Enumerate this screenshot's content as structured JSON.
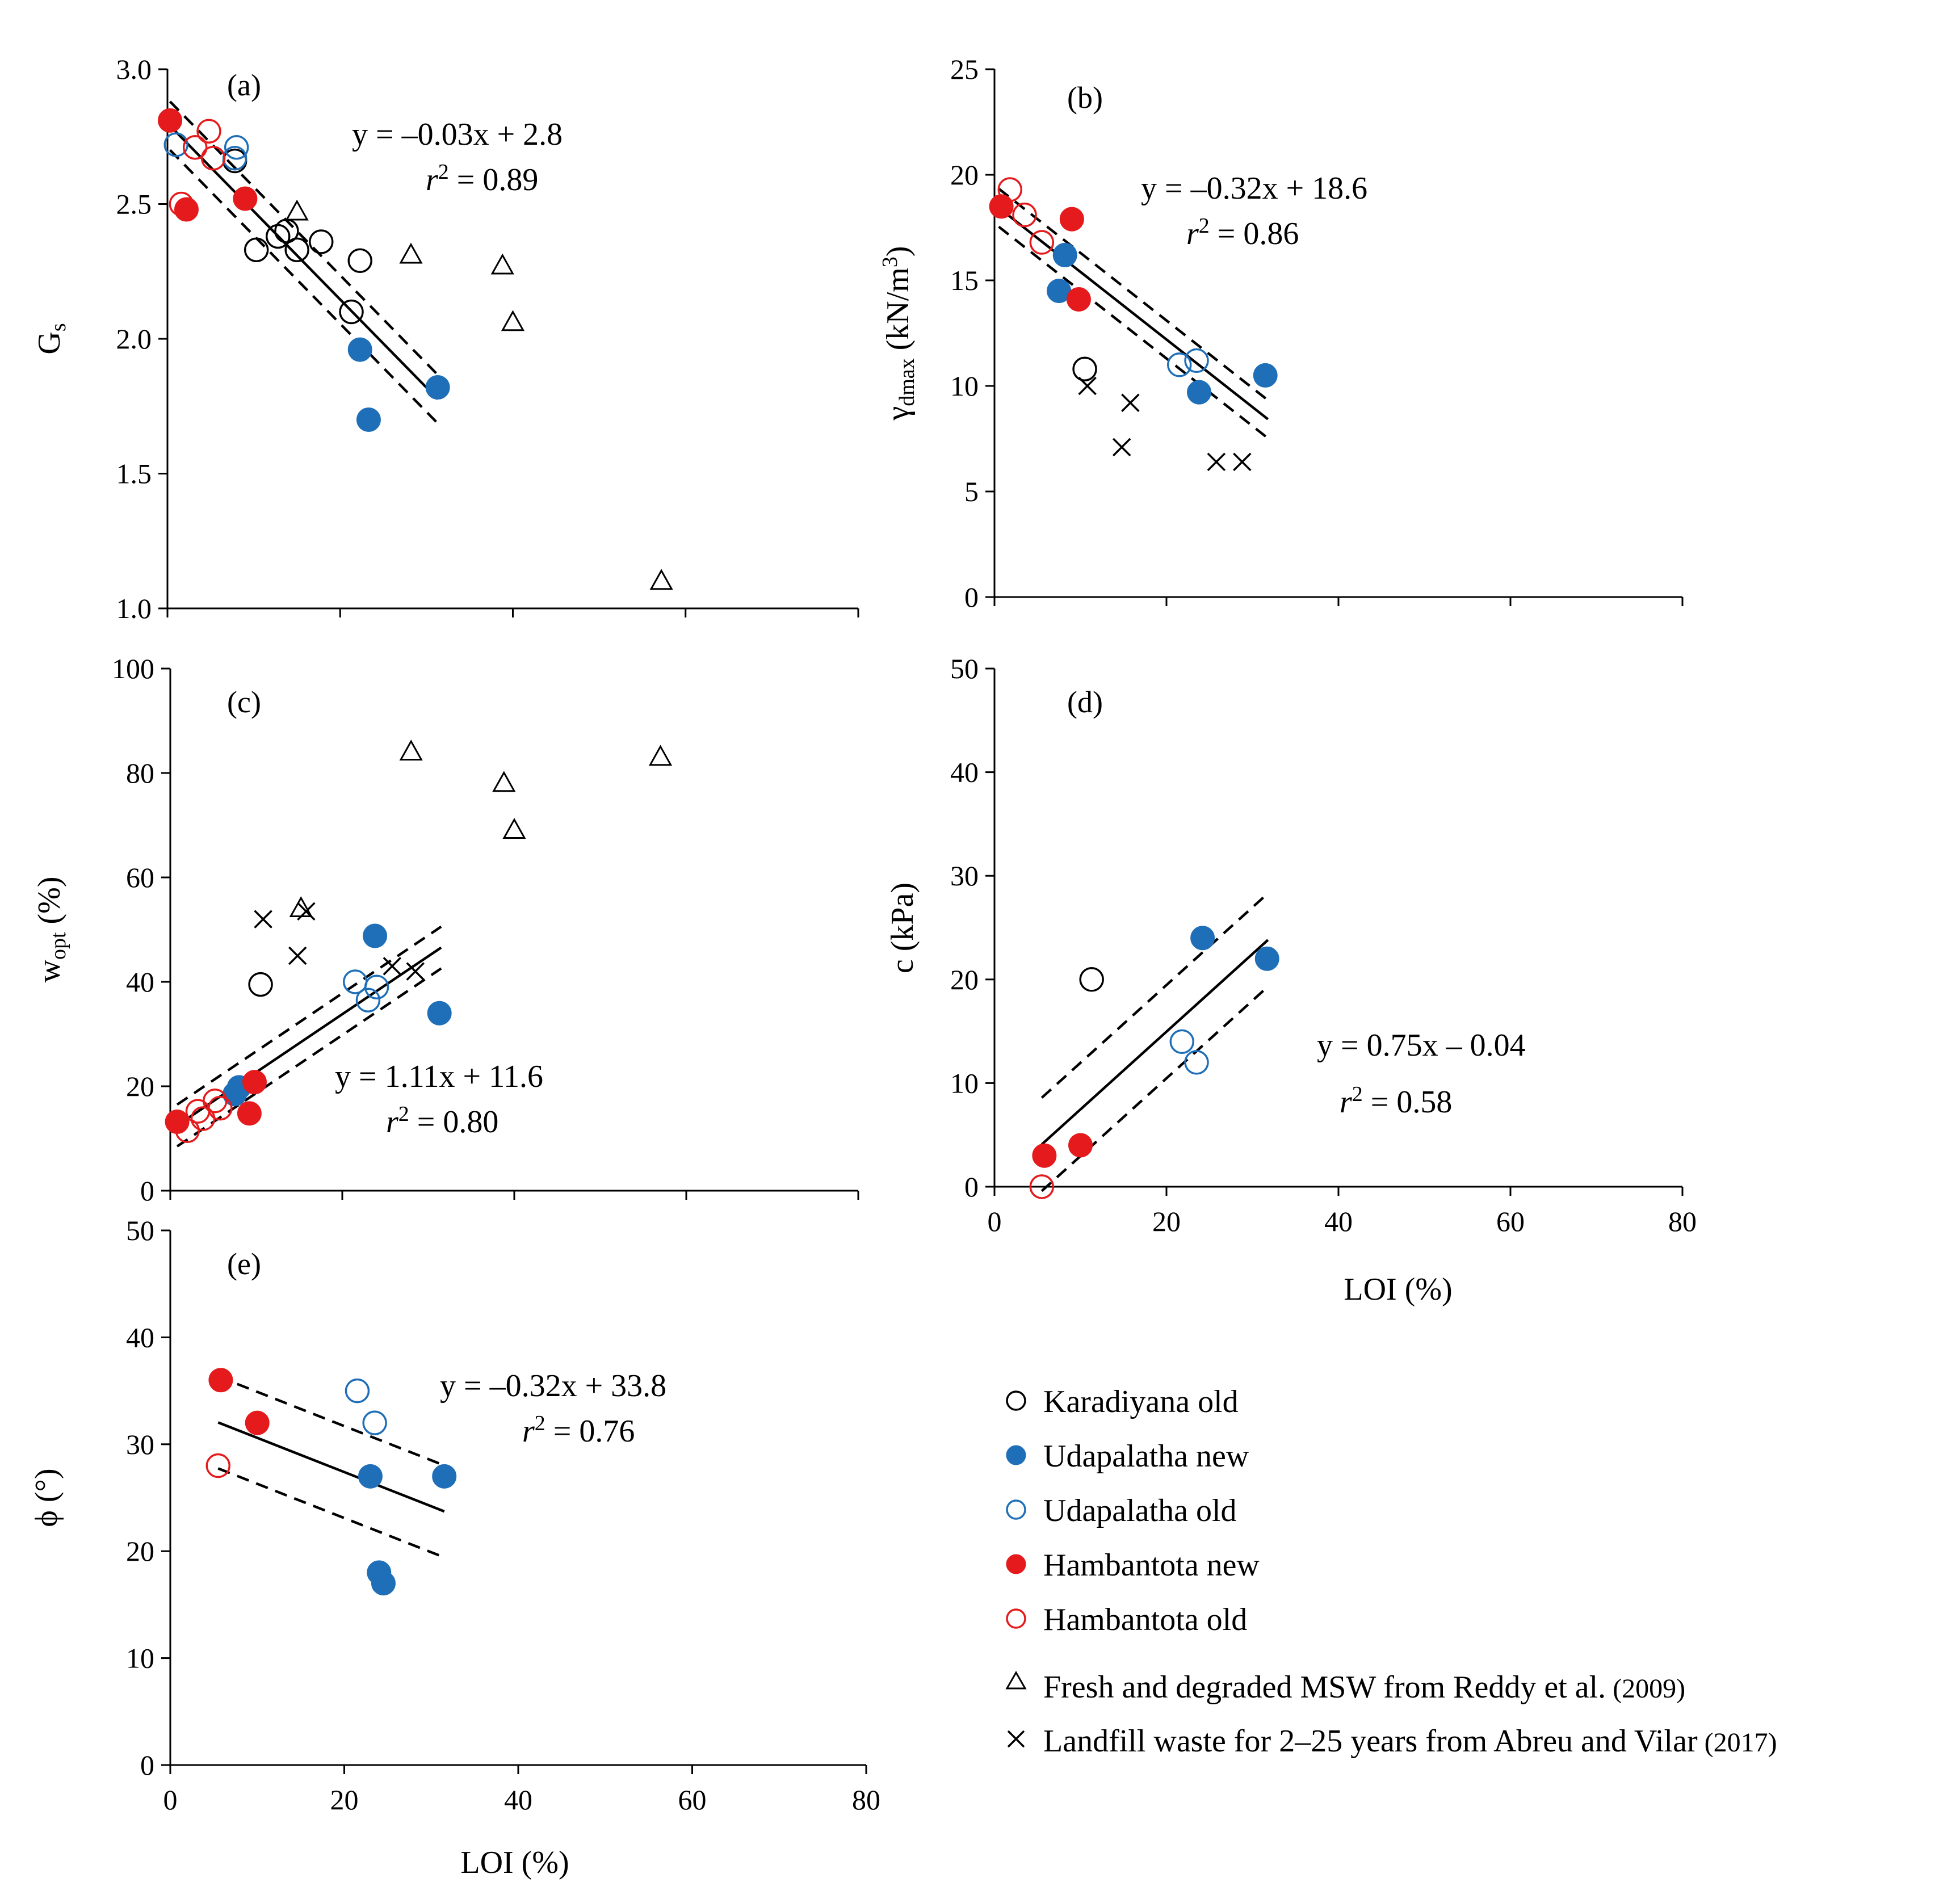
{
  "colors": {
    "karadiyana_old": "#000000",
    "udapalatha_new": "#1f6fb8",
    "udapalatha_old": "#1f6fb8",
    "hambantota_new": "#e41a1c",
    "hambantota_old": "#e41a1c",
    "reddy": "#000000",
    "abreu": "#000000"
  },
  "legend": [
    {
      "key": "karadiyana_old",
      "label": "Karadiyana old",
      "marker": "circle-open"
    },
    {
      "key": "udapalatha_new",
      "label": "Udapalatha new",
      "marker": "circle-filled"
    },
    {
      "key": "udapalatha_old",
      "label": "Udapalatha old",
      "marker": "circle-open"
    },
    {
      "key": "hambantota_new",
      "label": "Hambantota new",
      "marker": "circle-filled"
    },
    {
      "key": "hambantota_old",
      "label": "Hambantota old",
      "marker": "circle-open"
    },
    {
      "key": "reddy",
      "label": "Fresh and degraded MSW from Reddy et al.",
      "year": "(2009)",
      "marker": "triangle"
    },
    {
      "key": "abreu",
      "label": "Landfill waste for 2–25 years from Abreu and Vilar",
      "year": "(2017)",
      "marker": "cross"
    }
  ],
  "chart_data": [
    {
      "id": "a",
      "type": "scatter",
      "panel_label": "(a)",
      "xlabel": "",
      "ylabel": "G",
      "ylabel_sub": "s",
      "xlim": [
        0,
        80
      ],
      "ylim": [
        1.0,
        3.0
      ],
      "xticks": [
        0,
        20,
        40,
        60,
        80
      ],
      "show_xtick_labels": false,
      "yticks": [
        1.0,
        1.5,
        2.0,
        2.5,
        3.0
      ],
      "ytick_labels": [
        "1.0",
        "1.5",
        "2.0",
        "2.5",
        "3.0"
      ],
      "equation": "y = –0.03x + 2.8",
      "r2_label": "r",
      "r2_value": " = 0.89",
      "fit": {
        "slope": -0.0327,
        "intercept": 2.8,
        "x_range": [
          0.3,
          31.3
        ],
        "ci_offset": 0.09
      },
      "series": [
        {
          "key": "karadiyana_old",
          "points": [
            [
              7.8,
              2.66
            ],
            [
              10.3,
              2.33
            ],
            [
              12.8,
              2.38
            ],
            [
              13.8,
              2.4
            ],
            [
              15.0,
              2.33
            ],
            [
              17.8,
              2.36
            ],
            [
              21.3,
              2.1
            ],
            [
              22.3,
              2.29
            ]
          ]
        },
        {
          "key": "udapalatha_new",
          "points": [
            [
              22.3,
              1.96
            ],
            [
              23.3,
              1.7
            ],
            [
              31.3,
              1.82
            ]
          ]
        },
        {
          "key": "udapalatha_old",
          "points": [
            [
              1.0,
              2.72
            ],
            [
              7.8,
              2.67
            ],
            [
              8.0,
              2.71
            ]
          ]
        },
        {
          "key": "hambantota_new",
          "points": [
            [
              0.3,
              2.81
            ],
            [
              2.2,
              2.48
            ],
            [
              9.0,
              2.52
            ]
          ]
        },
        {
          "key": "hambantota_old",
          "points": [
            [
              1.6,
              2.5
            ],
            [
              3.2,
              2.71
            ],
            [
              4.8,
              2.77
            ],
            [
              5.3,
              2.67
            ]
          ]
        },
        {
          "key": "reddy",
          "points": [
            [
              15.0,
              2.47
            ],
            [
              28.2,
              2.31
            ],
            [
              38.8,
              2.27
            ],
            [
              40.0,
              2.06
            ],
            [
              57.2,
              1.1
            ]
          ]
        },
        {
          "key": "abreu",
          "points": []
        }
      ]
    },
    {
      "id": "b",
      "type": "scatter",
      "panel_label": "(b)",
      "xlabel": "",
      "ylabel": "γ",
      "ylabel_sub": "dmax",
      "ylabel_rest": " (kN/m",
      "ylabel_sup": "3",
      "ylabel_end": ")",
      "xlim": [
        0,
        80
      ],
      "ylim": [
        0,
        25
      ],
      "xticks": [
        0,
        20,
        40,
        60,
        80
      ],
      "show_xtick_labels": false,
      "yticks": [
        0,
        5,
        10,
        15,
        20,
        25
      ],
      "ytick_labels": [
        "0",
        "5",
        "10",
        "15",
        "20",
        "25"
      ],
      "equation": "y = –0.32x + 18.6",
      "r2_label": "r",
      "r2_value": " = 0.86",
      "fit": {
        "slope": -0.32,
        "intercept": 18.6,
        "x_range": [
          0.5,
          31.8
        ],
        "ci_offset": 0.9
      },
      "series": [
        {
          "key": "karadiyana_old",
          "points": [
            [
              10.5,
              10.8
            ]
          ]
        },
        {
          "key": "udapalatha_new",
          "points": [
            [
              7.5,
              14.5
            ],
            [
              8.2,
              16.2
            ],
            [
              23.8,
              9.7
            ],
            [
              31.5,
              10.5
            ]
          ]
        },
        {
          "key": "udapalatha_old",
          "points": [
            [
              21.5,
              11.0
            ],
            [
              23.5,
              11.2
            ]
          ]
        },
        {
          "key": "hambantota_new",
          "points": [
            [
              0.8,
              18.5
            ],
            [
              9.0,
              17.9
            ],
            [
              9.8,
              14.1
            ]
          ]
        },
        {
          "key": "hambantota_old",
          "points": [
            [
              1.8,
              19.3
            ],
            [
              3.5,
              18.1
            ],
            [
              5.5,
              16.8
            ]
          ]
        },
        {
          "key": "reddy",
          "points": []
        },
        {
          "key": "abreu",
          "points": [
            [
              10.8,
              10.0
            ],
            [
              14.8,
              7.1
            ],
            [
              15.8,
              9.2
            ],
            [
              25.8,
              6.4
            ],
            [
              28.8,
              6.4
            ]
          ]
        }
      ]
    },
    {
      "id": "c",
      "type": "scatter",
      "panel_label": "(c)",
      "xlabel": "",
      "ylabel": "w",
      "ylabel_sub": "opt",
      "ylabel_rest": " (%)",
      "xlim": [
        0,
        80
      ],
      "ylim": [
        0,
        100
      ],
      "xticks": [
        0,
        20,
        40,
        60,
        80
      ],
      "show_xtick_labels": false,
      "yticks": [
        0,
        20,
        40,
        60,
        80,
        100
      ],
      "ytick_labels": [
        "0",
        "20",
        "40",
        "60",
        "80",
        "100"
      ],
      "equation": "y = 1.11x + 11.6",
      "r2_label": "r",
      "r2_value": " = 0.80",
      "fit": {
        "slope": 1.11,
        "intercept": 11.6,
        "x_range": [
          0.8,
          31.5
        ],
        "ci_offset": 4.0
      },
      "series": [
        {
          "key": "karadiyana_old",
          "points": [
            [
              10.5,
              39.5
            ]
          ]
        },
        {
          "key": "udapalatha_new",
          "points": [
            [
              7.5,
              18.5
            ],
            [
              8.0,
              19.8
            ],
            [
              23.8,
              48.8
            ],
            [
              31.3,
              34.0
            ]
          ]
        },
        {
          "key": "udapalatha_old",
          "points": [
            [
              21.5,
              40.0
            ],
            [
              23.0,
              36.5
            ],
            [
              24.0,
              39.0
            ]
          ]
        },
        {
          "key": "hambantota_new",
          "points": [
            [
              0.8,
              13.2
            ],
            [
              9.2,
              14.8
            ],
            [
              9.8,
              20.8
            ]
          ]
        },
        {
          "key": "hambantota_old",
          "points": [
            [
              2.0,
              11.5
            ],
            [
              3.2,
              15.2
            ],
            [
              3.8,
              13.8
            ],
            [
              5.2,
              17.2
            ],
            [
              5.8,
              15.8
            ]
          ]
        },
        {
          "key": "reddy",
          "points": [
            [
              15.2,
              54.0
            ],
            [
              28.0,
              84.0
            ],
            [
              38.8,
              78.0
            ],
            [
              40.0,
              69.0
            ],
            [
              57.0,
              83.0
            ]
          ]
        },
        {
          "key": "abreu",
          "points": [
            [
              10.8,
              52.0
            ],
            [
              14.8,
              45.0
            ],
            [
              15.8,
              53.5
            ],
            [
              25.8,
              43.0
            ],
            [
              28.5,
              42.0
            ]
          ]
        }
      ]
    },
    {
      "id": "d",
      "type": "scatter",
      "panel_label": "(d)",
      "xlabel": "LOI (%)",
      "ylabel": "c (kPa)",
      "xlim": [
        0,
        80
      ],
      "ylim": [
        0,
        50
      ],
      "xticks": [
        0,
        20,
        40,
        60,
        80
      ],
      "show_xtick_labels": true,
      "xtick_labels": [
        "0",
        "20",
        "40",
        "60",
        "80"
      ],
      "yticks": [
        0,
        10,
        20,
        30,
        40,
        50
      ],
      "ytick_labels": [
        "0",
        "10",
        "20",
        "30",
        "40",
        "50"
      ],
      "equation": "y = 0.75x – 0.04",
      "r2_label": "r",
      "r2_value": " = 0.58",
      "fit": {
        "slope": 0.75,
        "intercept": -0.04,
        "x_range": [
          5.5,
          31.8
        ],
        "ci_offset": 4.5
      },
      "series": [
        {
          "key": "karadiyana_old",
          "points": [
            [
              11.3,
              20.0
            ]
          ]
        },
        {
          "key": "udapalatha_new",
          "points": [
            [
              24.2,
              24.0
            ],
            [
              31.7,
              22.0
            ]
          ]
        },
        {
          "key": "udapalatha_old",
          "points": [
            [
              21.8,
              14.0
            ],
            [
              23.5,
              12.0
            ]
          ]
        },
        {
          "key": "hambantota_new",
          "points": [
            [
              5.8,
              3.0
            ],
            [
              10.0,
              4.0
            ]
          ]
        },
        {
          "key": "hambantota_old",
          "points": [
            [
              5.5,
              0.0
            ]
          ]
        },
        {
          "key": "reddy",
          "points": []
        },
        {
          "key": "abreu",
          "points": []
        }
      ]
    },
    {
      "id": "e",
      "type": "scatter",
      "panel_label": "(e)",
      "xlabel": "LOI (%)",
      "ylabel": "ϕ (°)",
      "xlim": [
        0,
        80
      ],
      "ylim": [
        0,
        50
      ],
      "xticks": [
        0,
        20,
        40,
        60,
        80
      ],
      "show_xtick_labels": true,
      "xtick_labels": [
        "0",
        "20",
        "40",
        "60",
        "80"
      ],
      "yticks": [
        0,
        10,
        20,
        30,
        40,
        50
      ],
      "ytick_labels": [
        "0",
        "10",
        "20",
        "30",
        "40",
        "50"
      ],
      "equation": "y = –0.32x + 33.8",
      "r2_label": "r",
      "r2_value": " = 0.76",
      "fit": {
        "slope": -0.32,
        "intercept": 33.8,
        "x_range": [
          5.5,
          31.5
        ],
        "ci_offset": 4.3
      },
      "series": [
        {
          "key": "karadiyana_old",
          "points": []
        },
        {
          "key": "udapalatha_new",
          "points": [
            [
              23.0,
              27.0
            ],
            [
              24.0,
              18.0
            ],
            [
              24.5,
              17.0
            ],
            [
              31.5,
              27.0
            ]
          ]
        },
        {
          "key": "udapalatha_old",
          "points": [
            [
              21.5,
              35.0
            ],
            [
              23.5,
              32.0
            ]
          ]
        },
        {
          "key": "hambantota_new",
          "points": [
            [
              5.8,
              36.0
            ],
            [
              10.0,
              32.0
            ]
          ]
        },
        {
          "key": "hambantota_old",
          "points": [
            [
              5.5,
              28.0
            ]
          ]
        },
        {
          "key": "reddy",
          "points": []
        },
        {
          "key": "abreu",
          "points": []
        }
      ]
    }
  ]
}
